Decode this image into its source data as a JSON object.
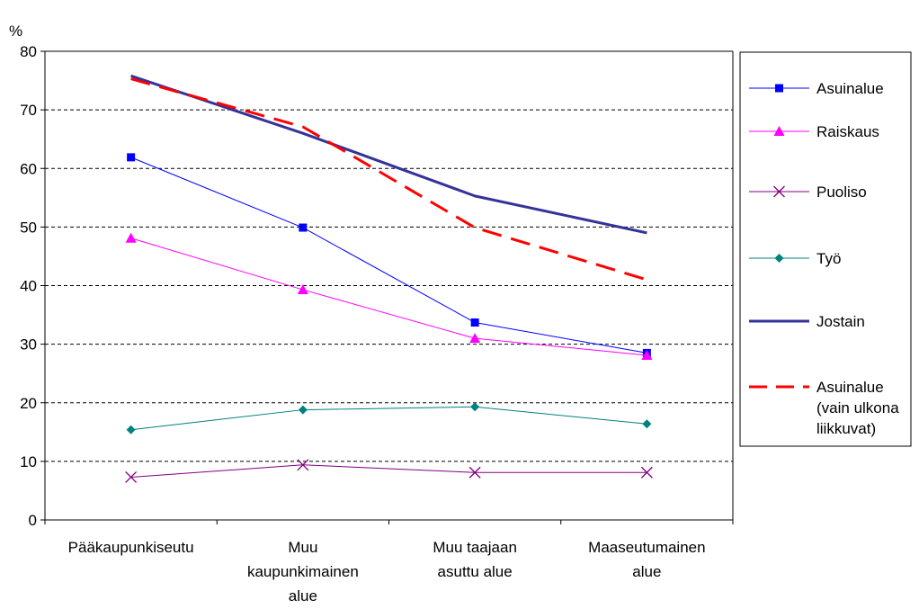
{
  "chart_data": {
    "type": "line",
    "ylabel": "%",
    "ylim": [
      0,
      80
    ],
    "yticks": [
      0,
      10,
      20,
      30,
      40,
      50,
      60,
      70,
      80
    ],
    "categories": [
      [
        "Pääkaupunkiseutu"
      ],
      [
        "Muu",
        "kaupunkimainen",
        "alue"
      ],
      [
        "Muu taajaan",
        "asuttu alue"
      ],
      [
        "Maaseutumainen",
        "alue"
      ]
    ],
    "grid": "horizontal dashed",
    "legend_position": "right",
    "series": [
      {
        "name": "Asuinalue",
        "values": [
          61.9,
          49.9,
          33.7,
          28.5
        ],
        "color": "#0000ff",
        "marker": "square",
        "style": "solid",
        "width": 1
      },
      {
        "name": "Raiskaus",
        "values": [
          48.1,
          39.3,
          31.0,
          28.1
        ],
        "color": "#ff00ff",
        "marker": "triangle",
        "style": "solid",
        "width": 1
      },
      {
        "name": "Puoliso",
        "values": [
          7.3,
          9.4,
          8.1,
          8.1
        ],
        "color": "#800080",
        "marker": "x",
        "style": "solid",
        "width": 1
      },
      {
        "name": "Työ",
        "values": [
          15.4,
          18.8,
          19.3,
          16.4
        ],
        "color": "#008080",
        "marker": "diamond",
        "style": "solid",
        "width": 1
      },
      {
        "name": "Jostain",
        "values": [
          75.8,
          66.0,
          55.3,
          49.0
        ],
        "color": "#333399",
        "marker": "none",
        "style": "solid",
        "width": 3
      },
      {
        "name": [
          "Asuinalue",
          "(vain ulkona",
          "liikkuvat)"
        ],
        "values": [
          75.3,
          67.1,
          49.9,
          41.0
        ],
        "color": "#ff0000",
        "marker": "none",
        "style": "dashed",
        "width": 3
      }
    ]
  }
}
